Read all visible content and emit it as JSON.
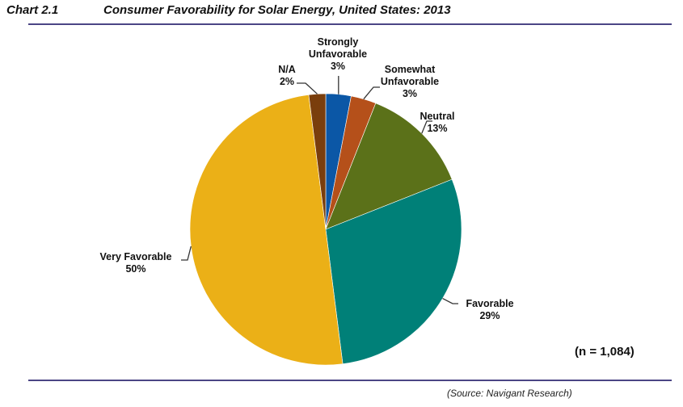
{
  "header": {
    "chart_number": "Chart 2.1",
    "title": "Consumer Favorability for Solar Energy, United States: 2013"
  },
  "sample_size": "(n = 1,084)",
  "source": "(Source: Navigant Research)",
  "chart_data": {
    "type": "pie",
    "title": "Consumer Favorability for Solar Energy, United States: 2013",
    "start_angle": "12 o'clock, clockwise",
    "slices": [
      {
        "label": "Strongly Unfavorable",
        "label_lines": [
          "Strongly",
          "Unfavorable"
        ],
        "value": 3,
        "value_label": "3%",
        "color": "#0b57a6"
      },
      {
        "label": "Somewhat Unfavorable",
        "label_lines": [
          "Somewhat",
          "Unfavorable"
        ],
        "value": 3,
        "value_label": "3%",
        "color": "#b5501a"
      },
      {
        "label": "Neutral",
        "label_lines": [
          "Neutral"
        ],
        "value": 13,
        "value_label": "13%",
        "color": "#5b7119"
      },
      {
        "label": "Favorable",
        "label_lines": [
          "Favorable"
        ],
        "value": 29,
        "value_label": "29%",
        "color": "#008078"
      },
      {
        "label": "Very Favorable",
        "label_lines": [
          "Very Favorable"
        ],
        "value": 50,
        "value_label": "50%",
        "color": "#ebb017"
      },
      {
        "label": "N/A",
        "label_lines": [
          "N/A"
        ],
        "value": 2,
        "value_label": "2%",
        "color": "#7a3e0c"
      }
    ]
  }
}
